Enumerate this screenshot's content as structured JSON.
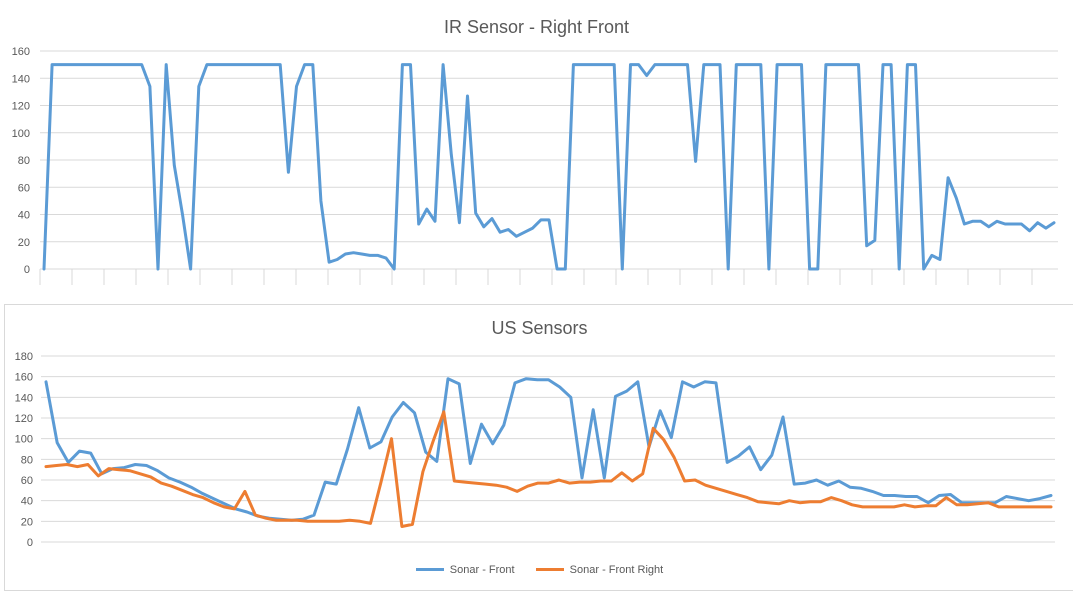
{
  "chart_data": [
    {
      "type": "line",
      "title": "IR Sensor - Right Front",
      "ylim": [
        0,
        160
      ],
      "yticks": [
        0,
        20,
        40,
        60,
        80,
        100,
        120,
        140,
        160
      ],
      "grid": true,
      "legend": "none",
      "series": [
        {
          "color": "#5b9bd5",
          "values": [
            0,
            150,
            150,
            150,
            150,
            150,
            150,
            150,
            150,
            150,
            150,
            150,
            150,
            134,
            0,
            150,
            76,
            40,
            0,
            134,
            150,
            150,
            150,
            150,
            150,
            150,
            150,
            150,
            150,
            150,
            71,
            134,
            150,
            150,
            50,
            5,
            7,
            11,
            12,
            11,
            10,
            10,
            8,
            0,
            150,
            150,
            33,
            44,
            35,
            150,
            84,
            34,
            127,
            41,
            31,
            37,
            27,
            29,
            24,
            27,
            30,
            36,
            36,
            0,
            0,
            150,
            150,
            150,
            150,
            150,
            150,
            0,
            150,
            150,
            142,
            150,
            150,
            150,
            150,
            150,
            79,
            150,
            150,
            150,
            0,
            150,
            150,
            150,
            150,
            0,
            150,
            150,
            150,
            150,
            0,
            0,
            150,
            150,
            150,
            150,
            150,
            17,
            21,
            150,
            150,
            0,
            150,
            150,
            0,
            10,
            7,
            67,
            52,
            33,
            35,
            35,
            31,
            35,
            33,
            33,
            33,
            28,
            34,
            30,
            34
          ]
        }
      ]
    },
    {
      "type": "line",
      "title": "US Sensors",
      "ylim": [
        0,
        180
      ],
      "yticks": [
        0,
        20,
        40,
        60,
        80,
        100,
        120,
        140,
        160,
        180
      ],
      "grid": true,
      "legend": "bottom",
      "series": [
        {
          "name": "Sonar - Front",
          "color": "#5b9bd5",
          "values": [
            155,
            96,
            77,
            88,
            86,
            66,
            71,
            72,
            75,
            74,
            69,
            62,
            58,
            53,
            47,
            42,
            37,
            32,
            29,
            25,
            23,
            22,
            21,
            22,
            26,
            58,
            56,
            90,
            130,
            91,
            97,
            121,
            135,
            125,
            87,
            78,
            158,
            153,
            76,
            114,
            95,
            113,
            154,
            158,
            157,
            157,
            150,
            140,
            62,
            128,
            62,
            141,
            146,
            155,
            92,
            127,
            101,
            155,
            150,
            155,
            154,
            77,
            83,
            92,
            70,
            84,
            121,
            56,
            57,
            60,
            55,
            59,
            53,
            52,
            49,
            45,
            45,
            44,
            44,
            38,
            45,
            46,
            38,
            38,
            38,
            38,
            44,
            42,
            40,
            42,
            45
          ]
        },
        {
          "name": "Sonar - Front Right",
          "color": "#ed7d31",
          "values": [
            73,
            74,
            75,
            73,
            75,
            64,
            71,
            70,
            69,
            66,
            63,
            57,
            54,
            50,
            46,
            43,
            38,
            34,
            32,
            49,
            26,
            23,
            21,
            21,
            21,
            20,
            20,
            20,
            20,
            21,
            20,
            18,
            58,
            100,
            15,
            17,
            68,
            98,
            126,
            59,
            58,
            57,
            56,
            55,
            53,
            49,
            54,
            57,
            57,
            60,
            57,
            58,
            58,
            59,
            59,
            67,
            59,
            66,
            110,
            99,
            82,
            59,
            60,
            55,
            52,
            49,
            46,
            43,
            39,
            38,
            37,
            40,
            38,
            39,
            39,
            43,
            40,
            36,
            34,
            34,
            34,
            34,
            36,
            34,
            35,
            35,
            43,
            36,
            36,
            37,
            38,
            34,
            34,
            34,
            34,
            34,
            34
          ]
        }
      ]
    }
  ]
}
